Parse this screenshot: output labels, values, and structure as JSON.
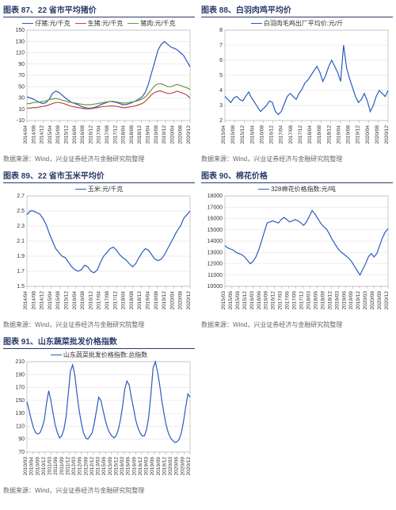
{
  "source_prefix": "数据来源：",
  "source_text": "Wind，兴业证券经济与金融研究院整理",
  "charts": [
    {
      "id": "c87",
      "title": "图表 87、22 省市平均猪价",
      "type": "line",
      "legend_pos": "top",
      "series": [
        {
          "name": "仔猪:元/千克",
          "color": "#2a5bbf",
          "data": [
            32,
            30,
            28,
            25,
            22,
            20,
            22,
            28,
            38,
            42,
            40,
            35,
            30,
            26,
            22,
            20,
            18,
            15,
            13,
            12,
            12,
            13,
            15,
            18,
            20,
            22,
            24,
            23,
            22,
            20,
            18,
            18,
            20,
            22,
            25,
            28,
            32,
            40,
            55,
            75,
            95,
            115,
            125,
            130,
            125,
            120,
            118,
            115,
            110,
            105,
            95,
            85
          ]
        },
        {
          "name": "生猪:元/千克",
          "color": "#c04a4a",
          "data": [
            12,
            12,
            13,
            13,
            14,
            15,
            16,
            18,
            20,
            22,
            22,
            21,
            19,
            17,
            15,
            14,
            13,
            12,
            11,
            11,
            11,
            12,
            13,
            14,
            15,
            15,
            16,
            16,
            15,
            14,
            13,
            13,
            14,
            15,
            16,
            18,
            20,
            24,
            30,
            36,
            40,
            42,
            42,
            40,
            38,
            38,
            40,
            42,
            40,
            38,
            35,
            30
          ]
        },
        {
          "name": "猪肉:元/千克",
          "color": "#6a9a3a",
          "data": [
            20,
            20,
            22,
            22,
            23,
            24,
            25,
            27,
            28,
            29,
            28,
            26,
            25,
            23,
            22,
            21,
            20,
            19,
            18,
            18,
            18,
            19,
            20,
            21,
            22,
            23,
            24,
            24,
            23,
            22,
            21,
            21,
            22,
            23,
            24,
            26,
            28,
            32,
            38,
            45,
            52,
            55,
            55,
            53,
            50,
            50,
            52,
            54,
            52,
            50,
            48,
            45
          ]
        }
      ],
      "x_labels": [
        "2014/04",
        "2014/08",
        "2014/12",
        "2015/04",
        "2015/08",
        "2015/12",
        "2016/04",
        "2016/08",
        "2016/12",
        "2017/04",
        "2017/08",
        "2017/12",
        "2018/04",
        "2018/08",
        "2018/12",
        "2019/04",
        "2019/08",
        "2019/12",
        "2020/04",
        "2020/08",
        "2020/12"
      ],
      "ylim": [
        -10,
        150
      ],
      "ytick_step": 20,
      "background_color": "#ffffff",
      "grid_color": "#dddddd",
      "title_fontsize": 10,
      "label_fontsize": 7
    },
    {
      "id": "c88",
      "title": "图表 88、白羽肉鸡平均价",
      "type": "line",
      "legend_pos": "top",
      "series": [
        {
          "name": "白羽肉毛鸡出厂平均价:元/斤",
          "color": "#2a5bbf",
          "data": [
            3.6,
            3.4,
            3.2,
            3.5,
            3.6,
            3.4,
            3.3,
            3.6,
            3.9,
            3.5,
            3.2,
            2.9,
            2.6,
            2.8,
            3.0,
            3.3,
            3.2,
            2.6,
            2.4,
            2.6,
            3.1,
            3.6,
            3.8,
            3.6,
            3.4,
            3.8,
            4.1,
            4.5,
            4.7,
            5.0,
            5.3,
            5.6,
            5.2,
            4.6,
            5.0,
            5.6,
            6.0,
            5.6,
            5.2,
            4.6,
            7.0,
            5.5,
            4.8,
            4.2,
            3.6,
            3.2,
            3.4,
            3.8,
            3.3,
            2.6,
            3.0,
            3.6,
            4.0,
            3.8,
            3.6,
            4.0
          ]
        }
      ],
      "x_labels": [
        "2015/04",
        "2015/08",
        "2015/12",
        "2016/04",
        "2016/08",
        "2016/12",
        "2017/04",
        "2017/08",
        "2017/12",
        "2018/04",
        "2018/08",
        "2018/12",
        "2019/04",
        "2019/08",
        "2019/12",
        "2020/04",
        "2020/08",
        "2020/12"
      ],
      "ylim": [
        2,
        8
      ],
      "ytick_step": 1,
      "background_color": "#ffffff",
      "grid_color": "#dddddd",
      "title_fontsize": 10,
      "label_fontsize": 7
    },
    {
      "id": "c89",
      "title": "图表 89、22 省市玉米平均价",
      "type": "line",
      "legend_pos": "top",
      "series": [
        {
          "name": "玉米:元/千克",
          "color": "#2a5bbf",
          "data": [
            2.45,
            2.5,
            2.5,
            2.48,
            2.46,
            2.4,
            2.32,
            2.2,
            2.1,
            2.0,
            1.95,
            1.9,
            1.88,
            1.82,
            1.76,
            1.72,
            1.7,
            1.72,
            1.78,
            1.76,
            1.7,
            1.68,
            1.72,
            1.82,
            1.9,
            1.95,
            2.0,
            2.02,
            1.98,
            1.92,
            1.88,
            1.85,
            1.8,
            1.76,
            1.8,
            1.88,
            1.95,
            2.0,
            1.98,
            1.92,
            1.86,
            1.84,
            1.86,
            1.92,
            2.0,
            2.08,
            2.16,
            2.24,
            2.3,
            2.4,
            2.45,
            2.5
          ]
        }
      ],
      "x_labels": [
        "2014/04",
        "2014/08",
        "2014/12",
        "2015/04",
        "2015/08",
        "2015/12",
        "2016/04",
        "2016/08",
        "2016/12",
        "2017/04",
        "2017/08",
        "2017/12",
        "2018/04",
        "2018/08",
        "2018/12",
        "2019/04",
        "2019/08",
        "2019/12",
        "2020/04",
        "2020/08",
        "2020/12"
      ],
      "ylim": [
        1.5,
        2.7
      ],
      "ytick_step": 0.2,
      "background_color": "#ffffff",
      "grid_color": "#dddddd",
      "title_fontsize": 10,
      "label_fontsize": 7
    },
    {
      "id": "c90",
      "title": "图表 90、棉花价格",
      "type": "line",
      "legend_pos": "top",
      "series": [
        {
          "name": "328棉花价格指数:元/吨",
          "color": "#2a5bbf",
          "data": [
            13600,
            13400,
            13300,
            13200,
            13000,
            12900,
            12800,
            12600,
            12300,
            12000,
            12200,
            12600,
            13200,
            14000,
            14800,
            15600,
            15700,
            15800,
            15700,
            15600,
            15900,
            16100,
            15900,
            15700,
            15800,
            15900,
            15800,
            15600,
            15400,
            15700,
            16200,
            16700,
            16400,
            16000,
            15600,
            15300,
            15100,
            14700,
            14200,
            13800,
            13400,
            13100,
            12900,
            12700,
            12500,
            12200,
            11800,
            11400,
            11000,
            11500,
            12000,
            12600,
            12900,
            12600,
            12900,
            13600,
            14300,
            14800,
            15100
          ]
        }
      ],
      "x_labels": [
        "2015/03",
        "2015/06",
        "2015/09",
        "2015/12",
        "2016/03",
        "2016/06",
        "2016/09",
        "2016/12",
        "2017/03",
        "2017/06",
        "2017/09",
        "2017/12",
        "2018/03",
        "2018/06",
        "2018/09",
        "2018/12",
        "2019/03",
        "2019/06",
        "2019/09",
        "2019/12",
        "2020/03",
        "2020/06",
        "2020/09",
        "2020/12"
      ],
      "ylim": [
        10000,
        18000
      ],
      "ytick_step": 1000,
      "background_color": "#ffffff",
      "grid_color": "#dddddd",
      "title_fontsize": 10,
      "label_fontsize": 7
    },
    {
      "id": "c91",
      "title": "图表 91、山东蔬菜批发价格指数",
      "type": "line",
      "legend_pos": "top",
      "series": [
        {
          "name": "山东蔬菜批发价格指数:总指数",
          "color": "#2a5bbf",
          "data": [
            148,
            135,
            120,
            108,
            100,
            98,
            100,
            108,
            120,
            145,
            165,
            150,
            130,
            112,
            100,
            92,
            95,
            105,
            124,
            160,
            195,
            205,
            190,
            160,
            135,
            115,
            100,
            92,
            90,
            95,
            100,
            115,
            135,
            155,
            150,
            135,
            120,
            108,
            100,
            95,
            92,
            95,
            105,
            120,
            142,
            168,
            180,
            174,
            155,
            138,
            120,
            108,
            100,
            95,
            95,
            105,
            125,
            160,
            200,
            210,
            195,
            175,
            150,
            130,
            112,
            100,
            92,
            88,
            85,
            86,
            90,
            100,
            118,
            140,
            160,
            155
          ]
        }
      ],
      "x_labels": [
        "2010/03",
        "2010/04",
        "2010/09",
        "2010/12",
        "2011/03",
        "2011/06",
        "2011/09",
        "2011/12",
        "2012/03",
        "2012/06",
        "2012/09",
        "2012/12",
        "2013/03",
        "2015/06",
        "2015/09",
        "2015/12",
        "2016/03",
        "2016/06",
        "2016/09",
        "2016/12",
        "2019/03",
        "2019/06",
        "2019/09",
        "2019/12",
        "2020/03",
        "2020/06",
        "2020/09",
        "2020/12"
      ],
      "ylim": [
        70,
        210
      ],
      "ytick_step": 20,
      "background_color": "#ffffff",
      "grid_color": "#dddddd",
      "title_fontsize": 10,
      "label_fontsize": 7
    }
  ]
}
